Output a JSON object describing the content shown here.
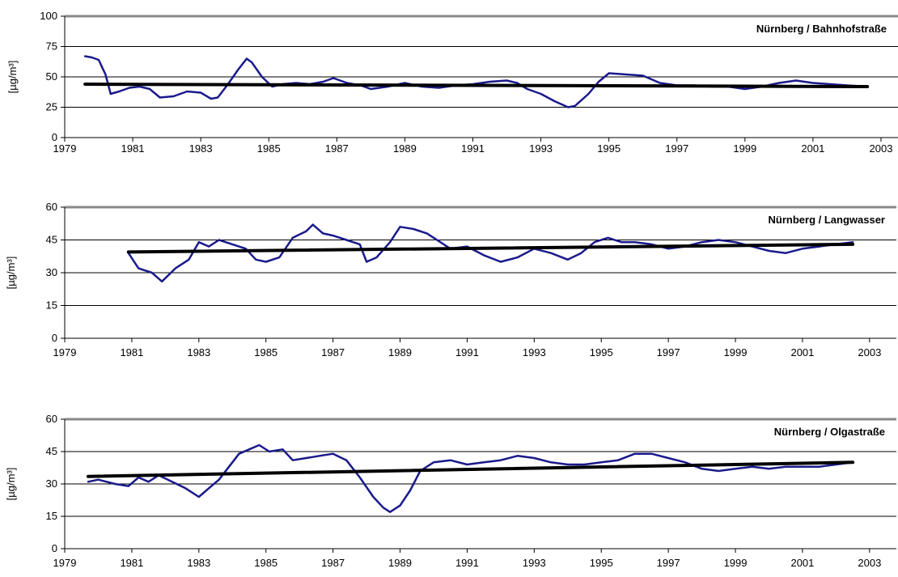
{
  "chart_data": [
    {
      "type": "line",
      "title": "Nürnberg / Bahnhofstraße",
      "ylabel": "[µg/m³]",
      "xlim": [
        1979,
        2003.5
      ],
      "ylim": [
        0,
        100
      ],
      "yticks": [
        0,
        25,
        50,
        75,
        100
      ],
      "xticks": [
        1979,
        1981,
        1983,
        1985,
        1987,
        1989,
        1991,
        1993,
        1995,
        1997,
        1999,
        2001,
        2003
      ],
      "grid": true,
      "series": [
        {
          "color": "#1a1a8c",
          "points": [
            [
              1979.6,
              67
            ],
            [
              1979.8,
              66
            ],
            [
              1980.0,
              64
            ],
            [
              1980.2,
              52
            ],
            [
              1980.35,
              36
            ],
            [
              1980.6,
              38
            ],
            [
              1980.9,
              41
            ],
            [
              1981.2,
              42
            ],
            [
              1981.5,
              40
            ],
            [
              1981.8,
              33
            ],
            [
              1982.2,
              34
            ],
            [
              1982.6,
              38
            ],
            [
              1983.0,
              37
            ],
            [
              1983.3,
              32
            ],
            [
              1983.5,
              33
            ],
            [
              1983.8,
              44
            ],
            [
              1984.1,
              56
            ],
            [
              1984.35,
              65
            ],
            [
              1984.5,
              62
            ],
            [
              1984.8,
              50
            ],
            [
              1985.1,
              42
            ],
            [
              1985.4,
              44
            ],
            [
              1985.8,
              45
            ],
            [
              1986.2,
              44
            ],
            [
              1986.6,
              46
            ],
            [
              1986.9,
              49
            ],
            [
              1987.3,
              45
            ],
            [
              1987.7,
              43
            ],
            [
              1988.0,
              40
            ],
            [
              1988.5,
              42
            ],
            [
              1989.0,
              45
            ],
            [
              1989.5,
              42
            ],
            [
              1990.0,
              41
            ],
            [
              1990.5,
              43
            ],
            [
              1991.0,
              44
            ],
            [
              1991.5,
              46
            ],
            [
              1992.0,
              47
            ],
            [
              1992.3,
              45
            ],
            [
              1992.6,
              40
            ],
            [
              1993.0,
              36
            ],
            [
              1993.4,
              30
            ],
            [
              1993.8,
              25
            ],
            [
              1994.0,
              26
            ],
            [
              1994.4,
              36
            ],
            [
              1994.7,
              46
            ],
            [
              1995.0,
              53
            ],
            [
              1995.5,
              52
            ],
            [
              1996.0,
              51
            ],
            [
              1996.5,
              45
            ],
            [
              1997.0,
              43
            ],
            [
              1997.5,
              43
            ],
            [
              1998.0,
              42
            ],
            [
              1998.5,
              42
            ],
            [
              1999.0,
              40
            ],
            [
              1999.5,
              42
            ],
            [
              2000.0,
              45
            ],
            [
              2000.5,
              47
            ],
            [
              2001.0,
              45
            ],
            [
              2001.5,
              44
            ],
            [
              2002.0,
              43
            ],
            [
              2002.6,
              42
            ]
          ]
        },
        {
          "color": "#000000",
          "points": [
            [
              1979.6,
              44
            ],
            [
              2002.6,
              42
            ]
          ]
        }
      ]
    },
    {
      "type": "line",
      "title": "Nürnberg / Langwasser",
      "ylabel": "[µg/m³]",
      "xlim": [
        1979,
        2003.8
      ],
      "ylim": [
        0,
        60
      ],
      "yticks": [
        0,
        15,
        30,
        45,
        60
      ],
      "xticks": [
        1979,
        1981,
        1983,
        1985,
        1987,
        1989,
        1991,
        1993,
        1995,
        1997,
        1999,
        2001,
        2003
      ],
      "grid": true,
      "series": [
        {
          "color": "#1a1a8c",
          "points": [
            [
              1980.9,
              39
            ],
            [
              1981.2,
              32
            ],
            [
              1981.6,
              30
            ],
            [
              1981.9,
              26
            ],
            [
              1982.3,
              32
            ],
            [
              1982.7,
              36
            ],
            [
              1983.0,
              44
            ],
            [
              1983.3,
              42
            ],
            [
              1983.6,
              45
            ],
            [
              1984.0,
              43
            ],
            [
              1984.4,
              41
            ],
            [
              1984.7,
              36
            ],
            [
              1985.0,
              35
            ],
            [
              1985.4,
              37
            ],
            [
              1985.8,
              46
            ],
            [
              1986.2,
              49
            ],
            [
              1986.4,
              52
            ],
            [
              1986.7,
              48
            ],
            [
              1987.0,
              47
            ],
            [
              1987.4,
              45
            ],
            [
              1987.8,
              43
            ],
            [
              1988.0,
              35
            ],
            [
              1988.3,
              37
            ],
            [
              1988.7,
              44
            ],
            [
              1989.0,
              51
            ],
            [
              1989.4,
              50
            ],
            [
              1989.8,
              48
            ],
            [
              1990.2,
              44
            ],
            [
              1990.5,
              41
            ],
            [
              1991.0,
              42
            ],
            [
              1991.5,
              38
            ],
            [
              1992.0,
              35
            ],
            [
              1992.5,
              37
            ],
            [
              1993.0,
              41
            ],
            [
              1993.5,
              39
            ],
            [
              1994.0,
              36
            ],
            [
              1994.4,
              39
            ],
            [
              1994.8,
              44
            ],
            [
              1995.2,
              46
            ],
            [
              1995.6,
              44
            ],
            [
              1996.0,
              44
            ],
            [
              1996.5,
              43
            ],
            [
              1997.0,
              41
            ],
            [
              1997.5,
              42
            ],
            [
              1998.0,
              44
            ],
            [
              1998.5,
              45
            ],
            [
              1999.0,
              44
            ],
            [
              1999.5,
              42
            ],
            [
              2000.0,
              40
            ],
            [
              2000.5,
              39
            ],
            [
              2001.0,
              41
            ],
            [
              2001.5,
              42
            ],
            [
              2002.0,
              43
            ],
            [
              2002.5,
              44
            ]
          ]
        },
        {
          "color": "#000000",
          "points": [
            [
              1980.9,
              39.5
            ],
            [
              2002.5,
              43
            ]
          ]
        }
      ]
    },
    {
      "type": "line",
      "title": "Nürnberg / Olgastraße",
      "ylabel": "[µg/m³]",
      "xlim": [
        1979,
        2003.8
      ],
      "ylim": [
        0,
        60
      ],
      "yticks": [
        0,
        15,
        30,
        45,
        60
      ],
      "xticks": [
        1979,
        1981,
        1983,
        1985,
        1987,
        1989,
        1991,
        1993,
        1995,
        1997,
        1999,
        2001,
        2003
      ],
      "grid": true,
      "series": [
        {
          "color": "#1a1a8c",
          "points": [
            [
              1979.7,
              31
            ],
            [
              1980.0,
              32
            ],
            [
              1980.5,
              30
            ],
            [
              1980.9,
              29
            ],
            [
              1981.2,
              33
            ],
            [
              1981.5,
              31
            ],
            [
              1981.8,
              34
            ],
            [
              1982.2,
              31
            ],
            [
              1982.6,
              28
            ],
            [
              1983.0,
              24
            ],
            [
              1983.3,
              28
            ],
            [
              1983.6,
              32
            ],
            [
              1983.9,
              38
            ],
            [
              1984.2,
              44
            ],
            [
              1984.5,
              46
            ],
            [
              1984.8,
              48
            ],
            [
              1985.1,
              45
            ],
            [
              1985.5,
              46
            ],
            [
              1985.8,
              41
            ],
            [
              1986.2,
              42
            ],
            [
              1986.6,
              43
            ],
            [
              1987.0,
              44
            ],
            [
              1987.4,
              41
            ],
            [
              1987.8,
              33
            ],
            [
              1988.2,
              24
            ],
            [
              1988.5,
              19
            ],
            [
              1988.7,
              17
            ],
            [
              1989.0,
              20
            ],
            [
              1989.3,
              27
            ],
            [
              1989.6,
              36
            ],
            [
              1990.0,
              40
            ],
            [
              1990.5,
              41
            ],
            [
              1991.0,
              39
            ],
            [
              1991.5,
              40
            ],
            [
              1992.0,
              41
            ],
            [
              1992.5,
              43
            ],
            [
              1993.0,
              42
            ],
            [
              1993.5,
              40
            ],
            [
              1994.0,
              39
            ],
            [
              1994.5,
              39
            ],
            [
              1995.0,
              40
            ],
            [
              1995.5,
              41
            ],
            [
              1996.0,
              44
            ],
            [
              1996.5,
              44
            ],
            [
              1997.0,
              42
            ],
            [
              1997.5,
              40
            ],
            [
              1998.0,
              37
            ],
            [
              1998.5,
              36
            ],
            [
              1999.0,
              37
            ],
            [
              1999.5,
              38
            ],
            [
              2000.0,
              37
            ],
            [
              2000.5,
              38
            ],
            [
              2001.0,
              38
            ],
            [
              2001.5,
              38
            ],
            [
              2002.0,
              39
            ],
            [
              2002.5,
              40
            ]
          ]
        },
        {
          "color": "#000000",
          "points": [
            [
              1979.7,
              33.5
            ],
            [
              2002.5,
              40
            ]
          ]
        }
      ]
    }
  ]
}
